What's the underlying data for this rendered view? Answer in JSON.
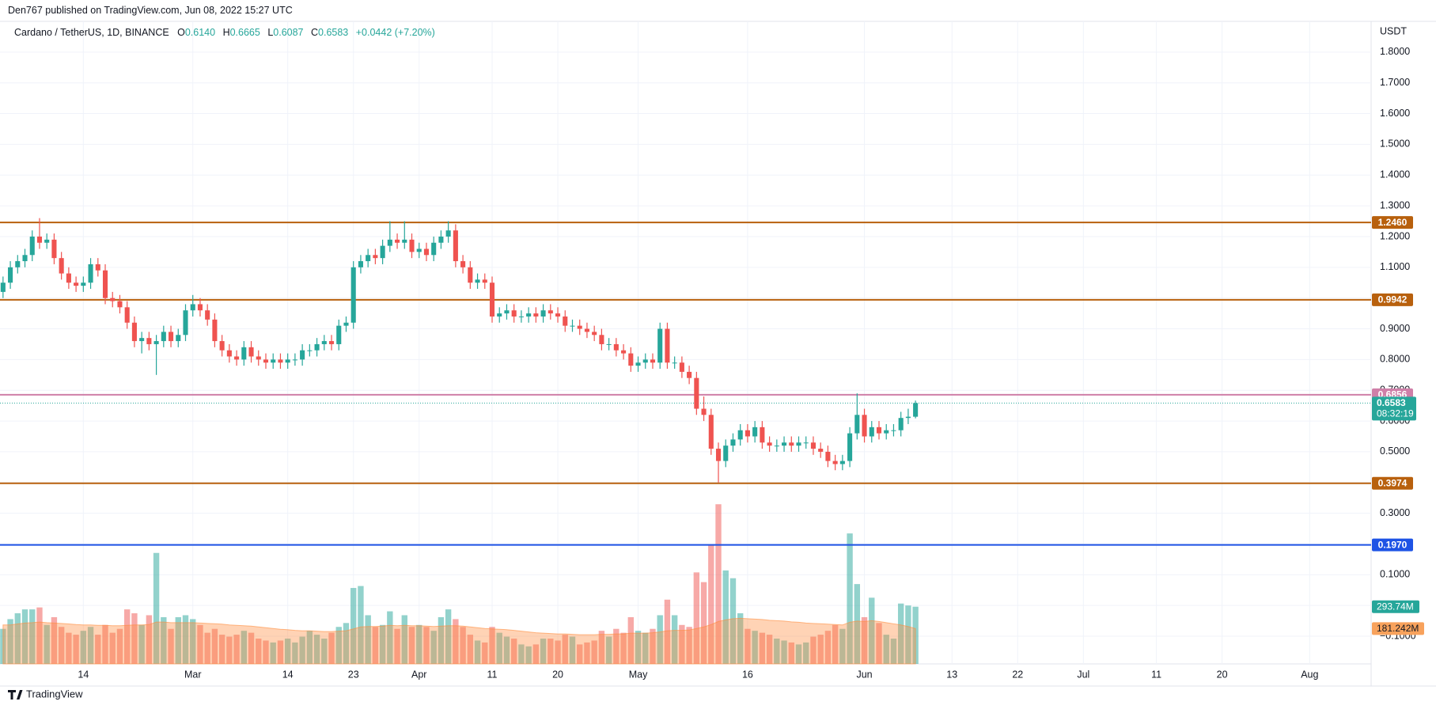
{
  "header": {
    "publisher": "Den767 published on TradingView.com, Jun 08, 2022 15:27 UTC",
    "logo": "TradingView"
  },
  "chart_data": {
    "type": "candlestick",
    "symbol": "Cardano / TetherUS, 1D, BINANCE",
    "ohlc": [
      {
        "key": "O",
        "value": "0.6140"
      },
      {
        "key": "H",
        "value": "0.6665"
      },
      {
        "key": "L",
        "value": "0.6087"
      },
      {
        "key": "C",
        "value": "0.6583"
      }
    ],
    "change": "+0.0442 (+7.20%)",
    "y_axis_unit": "USDT",
    "up_color": "#26a69a",
    "down_color": "#ef5350",
    "xlim": [
      "2022-02-02T14:00:00Z",
      "2022-08-09T10:00:00Z"
    ],
    "ylim": [
      -0.19,
      1.9
    ],
    "yticks": [
      {
        "value": 1.8,
        "label": "1.8000"
      },
      {
        "value": 1.7,
        "label": "1.7000"
      },
      {
        "value": 1.6,
        "label": "1.6000"
      },
      {
        "value": 1.5,
        "label": "1.5000"
      },
      {
        "value": 1.4,
        "label": "1.4000"
      },
      {
        "value": 1.3,
        "label": "1.3000"
      },
      {
        "value": 1.2,
        "label": "1.2000"
      },
      {
        "value": 1.1,
        "label": "1.1000"
      },
      {
        "value": 1.0,
        "label": "1.0000"
      },
      {
        "value": 0.9,
        "label": "0.9000"
      },
      {
        "value": 0.8,
        "label": "0.8000"
      },
      {
        "value": 0.7,
        "label": "0.7000"
      },
      {
        "value": 0.6,
        "label": "0.6000"
      },
      {
        "value": 0.5,
        "label": "0.5000"
      },
      {
        "value": 0.4,
        "label": "0.4000"
      },
      {
        "value": 0.3,
        "label": "0.3000"
      },
      {
        "value": 0.2,
        "label": "0.2000"
      },
      {
        "value": 0.1,
        "label": "0.1000"
      },
      {
        "value": 0,
        "label": "0.0000"
      },
      {
        "value": -0.1,
        "label": "−0.1000"
      }
    ],
    "xticks": [
      {
        "value": "2022-02-14",
        "label": "14"
      },
      {
        "value": "2022-03-01",
        "label": "Mar"
      },
      {
        "value": "2022-03-14",
        "label": "14"
      },
      {
        "value": "2022-03-23",
        "label": "23"
      },
      {
        "value": "2022-04-01",
        "label": "Apr"
      },
      {
        "value": "2022-04-11",
        "label": "11"
      },
      {
        "value": "2022-04-20",
        "label": "20"
      },
      {
        "value": "2022-05-01",
        "label": "May"
      },
      {
        "value": "2022-05-16",
        "label": "16"
      },
      {
        "value": "2022-06-01",
        "label": "Jun"
      },
      {
        "value": "2022-06-13",
        "label": "13"
      },
      {
        "value": "2022-06-22",
        "label": "22"
      },
      {
        "value": "2022-07-01",
        "label": "Jul"
      },
      {
        "value": "2022-07-11",
        "label": "11"
      },
      {
        "value": "2022-07-20",
        "label": "20"
      },
      {
        "value": "2022-08-01",
        "label": "Aug"
      }
    ],
    "grid": true,
    "levels": [
      {
        "value": 1.246,
        "label": "1.2460",
        "color": "#b8600d"
      },
      {
        "value": 0.9942,
        "label": "0.9942",
        "color": "#b8600d"
      },
      {
        "value": 0.6856,
        "label": "0.6856",
        "color": "#cf7fa8"
      },
      {
        "value": 0.3974,
        "label": "0.3974",
        "color": "#b8600d"
      },
      {
        "value": 0.197,
        "label": "0.1970",
        "color": "#1e53e5"
      }
    ],
    "last_price": {
      "value": 0.6583,
      "label": "0.6583",
      "countdown": "08:32:19"
    },
    "x": [
      "2022-02-03",
      "2022-02-04",
      "2022-02-05",
      "2022-02-06",
      "2022-02-07",
      "2022-02-08",
      "2022-02-09",
      "2022-02-10",
      "2022-02-11",
      "2022-02-12",
      "2022-02-13",
      "2022-02-14",
      "2022-02-15",
      "2022-02-16",
      "2022-02-17",
      "2022-02-18",
      "2022-02-19",
      "2022-02-20",
      "2022-02-21",
      "2022-02-22",
      "2022-02-23",
      "2022-02-24",
      "2022-02-25",
      "2022-02-26",
      "2022-02-27",
      "2022-02-28",
      "2022-03-01",
      "2022-03-02",
      "2022-03-03",
      "2022-03-04",
      "2022-03-05",
      "2022-03-06",
      "2022-03-07",
      "2022-03-08",
      "2022-03-09",
      "2022-03-10",
      "2022-03-11",
      "2022-03-12",
      "2022-03-13",
      "2022-03-14",
      "2022-03-15",
      "2022-03-16",
      "2022-03-17",
      "2022-03-18",
      "2022-03-19",
      "2022-03-20",
      "2022-03-21",
      "2022-03-22",
      "2022-03-23",
      "2022-03-24",
      "2022-03-25",
      "2022-03-26",
      "2022-03-27",
      "2022-03-28",
      "2022-03-29",
      "2022-03-30",
      "2022-03-31",
      "2022-04-01",
      "2022-04-02",
      "2022-04-03",
      "2022-04-04",
      "2022-04-05",
      "2022-04-06",
      "2022-04-07",
      "2022-04-08",
      "2022-04-09",
      "2022-04-10",
      "2022-04-11",
      "2022-04-12",
      "2022-04-13",
      "2022-04-14",
      "2022-04-15",
      "2022-04-16",
      "2022-04-17",
      "2022-04-18",
      "2022-04-19",
      "2022-04-20",
      "2022-04-21",
      "2022-04-22",
      "2022-04-23",
      "2022-04-24",
      "2022-04-25",
      "2022-04-26",
      "2022-04-27",
      "2022-04-28",
      "2022-04-29",
      "2022-04-30",
      "2022-05-01",
      "2022-05-02",
      "2022-05-03",
      "2022-05-04",
      "2022-05-05",
      "2022-05-06",
      "2022-05-07",
      "2022-05-08",
      "2022-05-09",
      "2022-05-10",
      "2022-05-11",
      "2022-05-12",
      "2022-05-13",
      "2022-05-14",
      "2022-05-15",
      "2022-05-16",
      "2022-05-17",
      "2022-05-18",
      "2022-05-19",
      "2022-05-20",
      "2022-05-21",
      "2022-05-22",
      "2022-05-23",
      "2022-05-24",
      "2022-05-25",
      "2022-05-26",
      "2022-05-27",
      "2022-05-28",
      "2022-05-29",
      "2022-05-30",
      "2022-05-31",
      "2022-06-01",
      "2022-06-02",
      "2022-06-03",
      "2022-06-04",
      "2022-06-05",
      "2022-06-06",
      "2022-06-07",
      "2022-06-08"
    ],
    "candles": [
      [
        1.02,
        1.07,
        1.0,
        1.05
      ],
      [
        1.05,
        1.12,
        1.03,
        1.1
      ],
      [
        1.1,
        1.14,
        1.08,
        1.12
      ],
      [
        1.12,
        1.16,
        1.1,
        1.14
      ],
      [
        1.14,
        1.22,
        1.12,
        1.2
      ],
      [
        1.2,
        1.26,
        1.16,
        1.18
      ],
      [
        1.18,
        1.21,
        1.16,
        1.19
      ],
      [
        1.19,
        1.21,
        1.11,
        1.13
      ],
      [
        1.13,
        1.15,
        1.06,
        1.08
      ],
      [
        1.08,
        1.1,
        1.03,
        1.05
      ],
      [
        1.05,
        1.07,
        1.02,
        1.04
      ],
      [
        1.04,
        1.07,
        1.02,
        1.05
      ],
      [
        1.05,
        1.13,
        1.03,
        1.11
      ],
      [
        1.11,
        1.13,
        1.07,
        1.09
      ],
      [
        1.09,
        1.11,
        0.98,
        1.0
      ],
      [
        1.0,
        1.02,
        0.97,
        0.99
      ],
      [
        0.99,
        1.01,
        0.95,
        0.97
      ],
      [
        0.97,
        0.99,
        0.9,
        0.92
      ],
      [
        0.92,
        0.94,
        0.84,
        0.86
      ],
      [
        0.86,
        0.89,
        0.82,
        0.87
      ],
      [
        0.87,
        0.89,
        0.83,
        0.85
      ],
      [
        0.85,
        0.88,
        0.75,
        0.86
      ],
      [
        0.86,
        0.91,
        0.84,
        0.89
      ],
      [
        0.89,
        0.91,
        0.84,
        0.86
      ],
      [
        0.86,
        0.9,
        0.84,
        0.88
      ],
      [
        0.88,
        0.98,
        0.86,
        0.96
      ],
      [
        0.96,
        1.01,
        0.94,
        0.98
      ],
      [
        0.98,
        1.0,
        0.94,
        0.96
      ],
      [
        0.96,
        0.98,
        0.91,
        0.93
      ],
      [
        0.93,
        0.95,
        0.84,
        0.86
      ],
      [
        0.86,
        0.88,
        0.81,
        0.83
      ],
      [
        0.83,
        0.85,
        0.79,
        0.81
      ],
      [
        0.81,
        0.83,
        0.78,
        0.8
      ],
      [
        0.8,
        0.86,
        0.78,
        0.84
      ],
      [
        0.84,
        0.86,
        0.79,
        0.81
      ],
      [
        0.81,
        0.83,
        0.78,
        0.8
      ],
      [
        0.8,
        0.82,
        0.77,
        0.79
      ],
      [
        0.79,
        0.82,
        0.77,
        0.8
      ],
      [
        0.8,
        0.82,
        0.77,
        0.79
      ],
      [
        0.79,
        0.82,
        0.77,
        0.8
      ],
      [
        0.8,
        0.82,
        0.78,
        0.8
      ],
      [
        0.8,
        0.85,
        0.78,
        0.83
      ],
      [
        0.83,
        0.85,
        0.81,
        0.83
      ],
      [
        0.83,
        0.87,
        0.81,
        0.85
      ],
      [
        0.85,
        0.88,
        0.83,
        0.86
      ],
      [
        0.86,
        0.88,
        0.83,
        0.85
      ],
      [
        0.85,
        0.93,
        0.83,
        0.91
      ],
      [
        0.91,
        0.94,
        0.89,
        0.92
      ],
      [
        0.92,
        1.12,
        0.9,
        1.1
      ],
      [
        1.1,
        1.14,
        1.08,
        1.12
      ],
      [
        1.12,
        1.16,
        1.1,
        1.14
      ],
      [
        1.14,
        1.16,
        1.11,
        1.13
      ],
      [
        1.13,
        1.19,
        1.11,
        1.17
      ],
      [
        1.17,
        1.25,
        1.15,
        1.19
      ],
      [
        1.19,
        1.21,
        1.16,
        1.18
      ],
      [
        1.18,
        1.25,
        1.16,
        1.19
      ],
      [
        1.19,
        1.21,
        1.13,
        1.15
      ],
      [
        1.15,
        1.18,
        1.13,
        1.16
      ],
      [
        1.16,
        1.18,
        1.12,
        1.14
      ],
      [
        1.14,
        1.2,
        1.12,
        1.18
      ],
      [
        1.18,
        1.22,
        1.16,
        1.2
      ],
      [
        1.2,
        1.25,
        1.18,
        1.22
      ],
      [
        1.22,
        1.24,
        1.1,
        1.12
      ],
      [
        1.12,
        1.14,
        1.08,
        1.1
      ],
      [
        1.1,
        1.12,
        1.03,
        1.05
      ],
      [
        1.05,
        1.08,
        1.03,
        1.06
      ],
      [
        1.06,
        1.08,
        1.03,
        1.05
      ],
      [
        1.05,
        1.07,
        0.92,
        0.94
      ],
      [
        0.94,
        0.97,
        0.92,
        0.95
      ],
      [
        0.95,
        0.98,
        0.93,
        0.96
      ],
      [
        0.96,
        0.98,
        0.92,
        0.94
      ],
      [
        0.94,
        0.96,
        0.92,
        0.94
      ],
      [
        0.94,
        0.97,
        0.92,
        0.95
      ],
      [
        0.95,
        0.97,
        0.92,
        0.94
      ],
      [
        0.94,
        0.98,
        0.92,
        0.96
      ],
      [
        0.96,
        0.98,
        0.93,
        0.95
      ],
      [
        0.95,
        0.97,
        0.92,
        0.94
      ],
      [
        0.94,
        0.96,
        0.89,
        0.91
      ],
      [
        0.91,
        0.93,
        0.89,
        0.91
      ],
      [
        0.91,
        0.93,
        0.88,
        0.9
      ],
      [
        0.9,
        0.92,
        0.87,
        0.89
      ],
      [
        0.89,
        0.91,
        0.86,
        0.88
      ],
      [
        0.88,
        0.9,
        0.83,
        0.85
      ],
      [
        0.85,
        0.87,
        0.83,
        0.85
      ],
      [
        0.85,
        0.87,
        0.81,
        0.83
      ],
      [
        0.83,
        0.85,
        0.8,
        0.82
      ],
      [
        0.82,
        0.84,
        0.76,
        0.78
      ],
      [
        0.78,
        0.81,
        0.76,
        0.79
      ],
      [
        0.79,
        0.82,
        0.77,
        0.8
      ],
      [
        0.8,
        0.82,
        0.77,
        0.79
      ],
      [
        0.79,
        0.92,
        0.77,
        0.9
      ],
      [
        0.9,
        0.92,
        0.77,
        0.79
      ],
      [
        0.79,
        0.81,
        0.77,
        0.79
      ],
      [
        0.79,
        0.81,
        0.74,
        0.76
      ],
      [
        0.76,
        0.78,
        0.72,
        0.74
      ],
      [
        0.74,
        0.76,
        0.62,
        0.64
      ],
      [
        0.64,
        0.68,
        0.6,
        0.62
      ],
      [
        0.62,
        0.64,
        0.49,
        0.51
      ],
      [
        0.51,
        0.53,
        0.4,
        0.47
      ],
      [
        0.47,
        0.54,
        0.45,
        0.52
      ],
      [
        0.52,
        0.56,
        0.5,
        0.54
      ],
      [
        0.54,
        0.59,
        0.52,
        0.57
      ],
      [
        0.57,
        0.59,
        0.53,
        0.55
      ],
      [
        0.55,
        0.6,
        0.53,
        0.58
      ],
      [
        0.58,
        0.6,
        0.51,
        0.53
      ],
      [
        0.53,
        0.55,
        0.5,
        0.52
      ],
      [
        0.52,
        0.54,
        0.5,
        0.52
      ],
      [
        0.52,
        0.55,
        0.5,
        0.53
      ],
      [
        0.53,
        0.55,
        0.5,
        0.52
      ],
      [
        0.52,
        0.55,
        0.5,
        0.53
      ],
      [
        0.53,
        0.55,
        0.51,
        0.53
      ],
      [
        0.53,
        0.55,
        0.49,
        0.51
      ],
      [
        0.51,
        0.53,
        0.48,
        0.5
      ],
      [
        0.5,
        0.52,
        0.45,
        0.47
      ],
      [
        0.47,
        0.49,
        0.44,
        0.46
      ],
      [
        0.46,
        0.49,
        0.44,
        0.47
      ],
      [
        0.47,
        0.58,
        0.45,
        0.56
      ],
      [
        0.56,
        0.69,
        0.54,
        0.62
      ],
      [
        0.62,
        0.64,
        0.53,
        0.55
      ],
      [
        0.55,
        0.6,
        0.53,
        0.58
      ],
      [
        0.58,
        0.6,
        0.54,
        0.56
      ],
      [
        0.56,
        0.59,
        0.54,
        0.57
      ],
      [
        0.57,
        0.59,
        0.55,
        0.57
      ],
      [
        0.57,
        0.63,
        0.55,
        0.61
      ],
      [
        0.61,
        0.64,
        0.59,
        0.614
      ],
      [
        0.614,
        0.6665,
        0.6087,
        0.6583
      ]
    ],
    "volume_ylim": [
      0,
      3300
    ],
    "volume": [
      180,
      230,
      260,
      280,
      280,
      290,
      200,
      240,
      190,
      160,
      150,
      170,
      190,
      150,
      200,
      160,
      180,
      280,
      260,
      200,
      250,
      570,
      240,
      180,
      240,
      250,
      230,
      200,
      160,
      180,
      150,
      140,
      150,
      170,
      160,
      130,
      120,
      110,
      120,
      130,
      110,
      140,
      170,
      150,
      130,
      160,
      190,
      210,
      390,
      400,
      250,
      190,
      200,
      270,
      180,
      250,
      190,
      200,
      190,
      170,
      240,
      280,
      230,
      190,
      150,
      120,
      110,
      190,
      160,
      140,
      130,
      100,
      90,
      100,
      130,
      130,
      120,
      150,
      140,
      100,
      110,
      120,
      170,
      140,
      180,
      160,
      240,
      170,
      160,
      180,
      250,
      330,
      250,
      200,
      190,
      470,
      420,
      610,
      820,
      480,
      440,
      260,
      180,
      170,
      160,
      150,
      130,
      120,
      110,
      100,
      110,
      140,
      150,
      170,
      200,
      180,
      670,
      410,
      240,
      340,
      210,
      150,
      130,
      310,
      300,
      293.74
    ],
    "volume_last_label": "293.74M",
    "volume_ma": [
      200,
      200,
      205,
      210,
      212,
      215,
      212,
      210,
      208,
      205,
      202,
      200,
      200,
      198,
      198,
      196,
      196,
      198,
      200,
      200,
      202,
      215,
      215,
      212,
      212,
      212,
      212,
      210,
      208,
      206,
      204,
      200,
      198,
      196,
      194,
      190,
      186,
      182,
      178,
      176,
      172,
      170,
      170,
      168,
      166,
      166,
      168,
      170,
      180,
      190,
      192,
      192,
      194,
      198,
      196,
      198,
      196,
      196,
      194,
      192,
      194,
      196,
      196,
      194,
      190,
      186,
      182,
      180,
      178,
      176,
      172,
      168,
      164,
      160,
      158,
      156,
      154,
      154,
      152,
      150,
      150,
      150,
      152,
      152,
      154,
      154,
      158,
      158,
      158,
      160,
      164,
      170,
      172,
      172,
      174,
      182,
      190,
      202,
      218,
      226,
      232,
      234,
      232,
      230,
      228,
      224,
      222,
      220,
      216,
      214,
      210,
      208,
      206,
      204,
      202,
      200,
      214,
      220,
      218,
      222,
      218,
      212,
      206,
      200,
      192,
      181.242
    ],
    "volume_ma_last_label": "181.242M",
    "volume_up_color": "rgba(38,166,154,0.5)",
    "volume_down_color": "rgba(239,83,80,0.5)",
    "volume_ma_color": "rgba(255,140,60,0.38)",
    "volume_ma_last_color": "#f8a25c"
  }
}
